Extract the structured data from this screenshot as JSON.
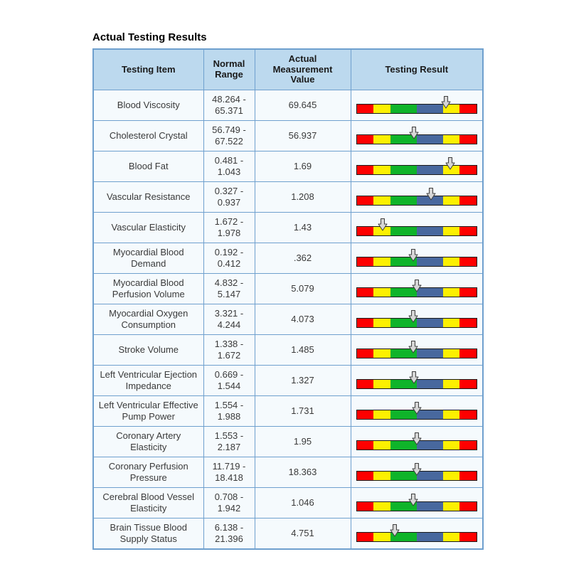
{
  "title": "Actual Testing Results",
  "table": {
    "headers": [
      "Testing Item",
      "Normal Range",
      "Actual Measurement Value",
      "Testing Result"
    ],
    "bar_segments": [
      {
        "name": "red-left",
        "color": "#fe0000",
        "pct": 14
      },
      {
        "name": "yellow-left",
        "color": "#fcf001",
        "pct": 14
      },
      {
        "name": "green-center",
        "color": "#0fb42a",
        "pct": 22
      },
      {
        "name": "blue-center",
        "color": "#48689e",
        "pct": 22
      },
      {
        "name": "yellow-right",
        "color": "#fcf001",
        "pct": 14
      },
      {
        "name": "red-right",
        "color": "#fe0000",
        "pct": 14
      }
    ],
    "marker_color": "#d6d6d6",
    "marker_outline": "#3f3f3f",
    "rows": [
      {
        "item": "Blood Viscosity",
        "range": "48.264 - 65.371",
        "value": "69.645",
        "marker_pct": 74
      },
      {
        "item": "Cholesterol Crystal",
        "range": "56.749 - 67.522",
        "value": "56.937",
        "marker_pct": 48
      },
      {
        "item": "Blood Fat",
        "range": "0.481 - 1.043",
        "value": "1.69",
        "marker_pct": 78
      },
      {
        "item": "Vascular Resistance",
        "range": "0.327 - 0.937",
        "value": "1.208",
        "marker_pct": 62
      },
      {
        "item": "Vascular Elasticity",
        "range": "1.672 - 1.978",
        "value": "1.43",
        "marker_pct": 22
      },
      {
        "item": "Myocardial Blood Demand",
        "range": "0.192 - 0.412",
        "value": ".362",
        "marker_pct": 47
      },
      {
        "item": "Myocardial Blood Perfusion Volume",
        "range": "4.832 - 5.147",
        "value": "5.079",
        "marker_pct": 50
      },
      {
        "item": "Myocardial Oxygen Consumption",
        "range": "3.321 - 4.244",
        "value": "4.073",
        "marker_pct": 47
      },
      {
        "item": "Stroke Volume",
        "range": "1.338 - 1.672",
        "value": "1.485",
        "marker_pct": 47
      },
      {
        "item": "Left Ventricular Ejection Impedance",
        "range": "0.669 - 1.544",
        "value": "1.327",
        "marker_pct": 48
      },
      {
        "item": "Left Ventricular Effective Pump Power",
        "range": "1.554 - 1.988",
        "value": "1.731",
        "marker_pct": 50
      },
      {
        "item": "Coronary Artery Elasticity",
        "range": "1.553 - 2.187",
        "value": "1.95",
        "marker_pct": 50
      },
      {
        "item": "Coronary Perfusion Pressure",
        "range": "11.719 - 18.418",
        "value": "18.363",
        "marker_pct": 50
      },
      {
        "item": "Cerebral Blood Vessel Elasticity",
        "range": "0.708 - 1.942",
        "value": "1.046",
        "marker_pct": 47
      },
      {
        "item": "Brain Tissue Blood Supply Status",
        "range": "6.138 - 21.396",
        "value": "4.751",
        "marker_pct": 32
      }
    ]
  }
}
